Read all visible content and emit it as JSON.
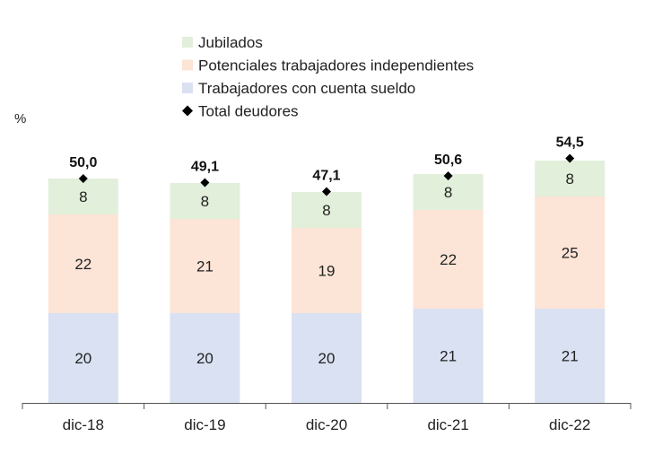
{
  "chart_data": {
    "type": "bar",
    "stacked": true,
    "ylabel": "%",
    "ylim": [
      0,
      60
    ],
    "grid": false,
    "legend_position": "top",
    "categories": [
      "dic-18",
      "dic-19",
      "dic-20",
      "dic-21",
      "dic-22"
    ],
    "series": [
      {
        "name": "Trabajadores con cuenta sueldo",
        "color": "#d9e1f2",
        "values": [
          20,
          20,
          20,
          21,
          21
        ],
        "labels": [
          "20",
          "20",
          "20",
          "21",
          "21"
        ]
      },
      {
        "name": "Potenciales trabajadores independientes",
        "color": "#fce4d6",
        "values": [
          22,
          21,
          19,
          22,
          25
        ],
        "labels": [
          "22",
          "21",
          "19",
          "22",
          "25"
        ]
      },
      {
        "name": "Jubilados",
        "color": "#e2efda",
        "values": [
          8,
          8,
          8,
          8,
          8
        ],
        "labels": [
          "8",
          "8",
          "8",
          "8",
          "8"
        ]
      }
    ],
    "totals": {
      "name": "Total deudores",
      "marker": "diamond",
      "color": "#000000",
      "values": [
        50.0,
        49.1,
        47.1,
        50.6,
        54.5
      ],
      "labels": [
        "50,0",
        "49,1",
        "47,1",
        "50,6",
        "54,5"
      ]
    },
    "legend_order": [
      "Jubilados",
      "Potenciales trabajadores independientes",
      "Trabajadores con cuenta sueldo",
      "Total deudores"
    ]
  }
}
